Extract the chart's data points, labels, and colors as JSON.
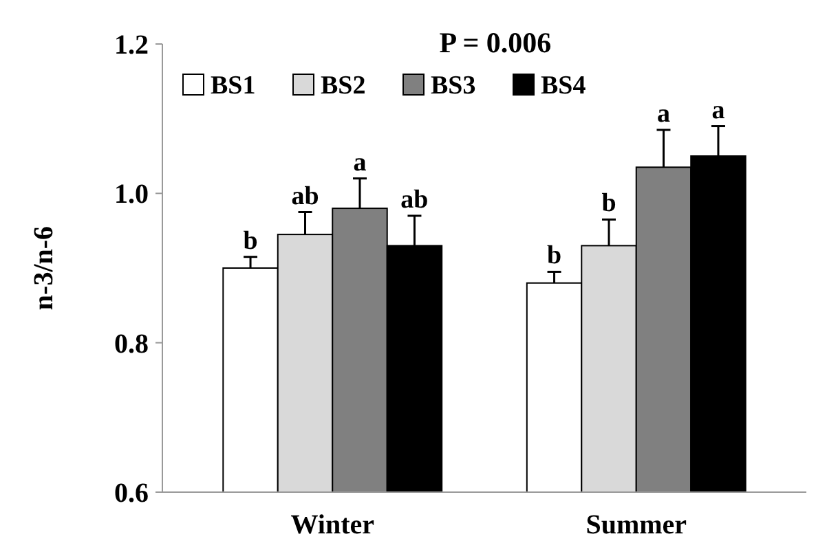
{
  "chart_data": {
    "type": "bar",
    "title": "P = 0.006",
    "ylabel": "n-3/n-6",
    "categories": [
      "Winter",
      "Summer"
    ],
    "ylim": [
      0.6,
      1.2
    ],
    "yticks": [
      {
        "value": 0.6,
        "label": "0.6"
      },
      {
        "value": 0.8,
        "label": "0.8"
      },
      {
        "value": 1,
        "label": "1.0"
      },
      {
        "value": 1.2,
        "label": "1.2"
      }
    ],
    "grid": false,
    "legend": "top left",
    "series": [
      {
        "name": "BS1",
        "color": "#ffffff",
        "values": [
          0.9,
          0.88
        ],
        "errors": [
          0.015,
          0.015
        ],
        "value_labels": [
          "b",
          "b"
        ]
      },
      {
        "name": "BS2",
        "color": "#d9d9d9",
        "values": [
          0.945,
          0.93
        ],
        "errors": [
          0.03,
          0.035
        ],
        "value_labels": [
          "ab",
          "b"
        ]
      },
      {
        "name": "BS3",
        "color": "#808080",
        "values": [
          0.98,
          1.035
        ],
        "errors": [
          0.04,
          0.05
        ],
        "value_labels": [
          "a",
          "a"
        ]
      },
      {
        "name": "BS4",
        "color": "#000000",
        "values": [
          0.93,
          1.05
        ],
        "errors": [
          0.04,
          0.04
        ],
        "value_labels": [
          "ab",
          "a"
        ]
      }
    ]
  }
}
